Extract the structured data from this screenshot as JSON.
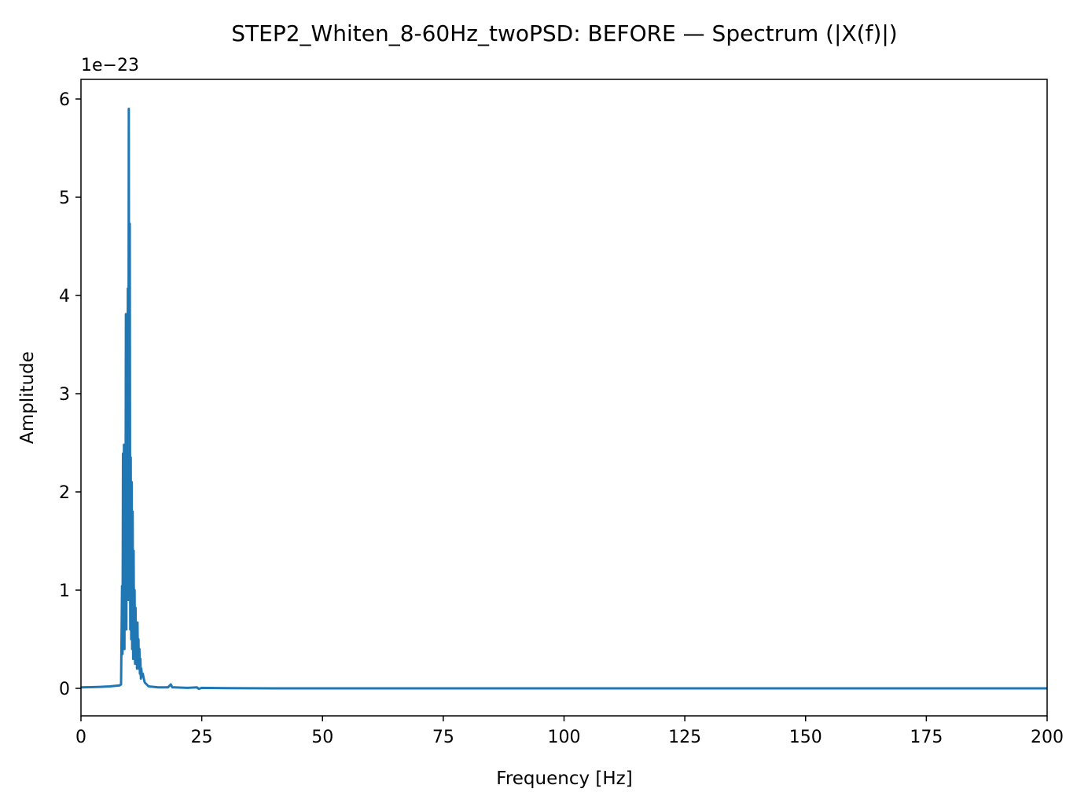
{
  "chart_data": {
    "type": "line",
    "title": "STEP2_Whiten_8-60Hz_twoPSD: BEFORE — Spectrum (|X(f)|)",
    "xlabel": "Frequency [Hz]",
    "ylabel": "Amplitude",
    "y_offset_label": "1e−23",
    "y_scale_factor": 1e-23,
    "xlim": [
      0,
      200
    ],
    "ylim": [
      -0.28,
      6.2
    ],
    "x_ticks": [
      0,
      25,
      50,
      75,
      100,
      125,
      150,
      175,
      200
    ],
    "x_tick_labels": [
      "0",
      "25",
      "50",
      "75",
      "100",
      "125",
      "150",
      "175",
      "200"
    ],
    "y_ticks": [
      0,
      1,
      2,
      3,
      4,
      5,
      6
    ],
    "y_tick_labels": [
      "0",
      "1",
      "2",
      "3",
      "4",
      "5",
      "6"
    ],
    "grid": false,
    "series": [
      {
        "color": "#1f77b4",
        "x": [
          0,
          2,
          4,
          6,
          8,
          8.3,
          8.5,
          8.6,
          8.7,
          8.8,
          8.9,
          9.0,
          9.1,
          9.2,
          9.3,
          9.4,
          9.5,
          9.6,
          9.7,
          9.8,
          9.9,
          10.0,
          10.1,
          10.2,
          10.3,
          10.4,
          10.5,
          10.6,
          10.7,
          10.8,
          10.9,
          11.0,
          11.1,
          11.2,
          11.3,
          11.4,
          11.5,
          11.6,
          11.7,
          11.8,
          11.9,
          12.0,
          12.1,
          12.2,
          12.3,
          12.4,
          12.5,
          12.6,
          12.8,
          13.0,
          13.2,
          14,
          16,
          18,
          18.6,
          18.9,
          19.4,
          22,
          24,
          24.4,
          25,
          30,
          40,
          50,
          60,
          80,
          100,
          125,
          150,
          175,
          200
        ],
        "y": [
          0.01,
          0.012,
          0.015,
          0.02,
          0.03,
          0.04,
          1.04,
          0.35,
          2.39,
          0.5,
          2.48,
          0.4,
          1.9,
          0.7,
          3.81,
          0.6,
          3.2,
          1.1,
          4.07,
          0.9,
          5.9,
          1.2,
          4.73,
          0.6,
          2.35,
          0.5,
          2.1,
          0.4,
          1.8,
          0.3,
          1.4,
          0.35,
          1.0,
          0.25,
          0.82,
          0.3,
          0.6,
          0.2,
          0.67,
          0.25,
          0.5,
          0.2,
          0.4,
          0.15,
          0.3,
          0.1,
          0.2,
          0.12,
          0.15,
          0.1,
          0.06,
          0.02,
          0.01,
          0.01,
          0.04,
          0.01,
          0.01,
          0.005,
          0.01,
          -0.005,
          0.005,
          0.002,
          0.0,
          0.0,
          0.0,
          0.0,
          0.0,
          0.0,
          0.0,
          0.0,
          0.0
        ]
      }
    ]
  }
}
